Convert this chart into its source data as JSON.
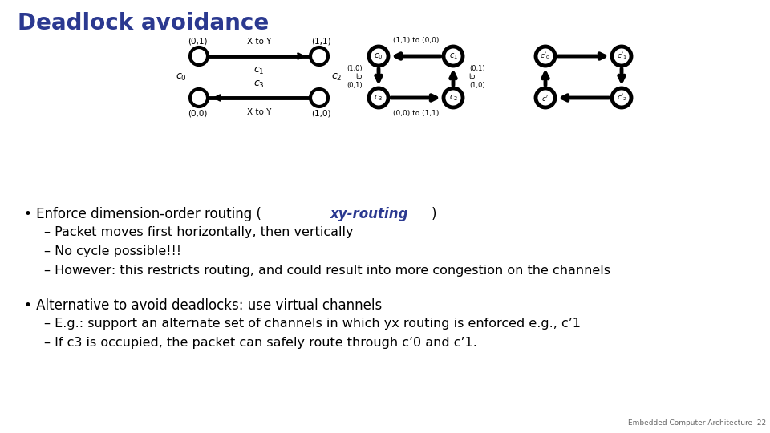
{
  "title": "Deadlock avoidance",
  "title_color": "#2B3990",
  "title_fontsize": 20,
  "bg_color": "#ffffff",
  "sub1_1": "– Packet moves first horizontally, then vertically",
  "sub1_2": "– No cycle possible!!!",
  "sub1_3": "– However: this restricts routing, and could result into more congestion on the channels",
  "bullet2": "Alternative to avoid deadlocks: use virtual channels",
  "sub2_1": "– E.g.: support an alternate set of channels in which yx routing is enforced e.g., c’1",
  "sub2_2": "– If c3 is occupied, the packet can safely route through c’0 and c’1.",
  "footer": "Embedded Computer Architecture  22",
  "highlight_color": "#2B3990",
  "text_color": "#000000",
  "text_fontsize": 12,
  "sub_fontsize": 11.5,
  "diagram_lw": 3.0,
  "node_r": 11
}
